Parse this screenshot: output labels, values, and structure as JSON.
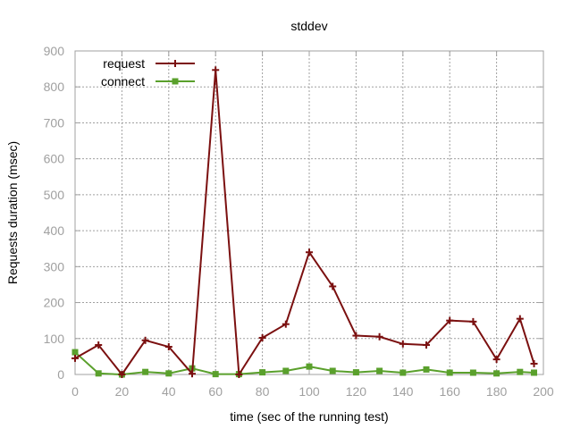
{
  "chart_data": {
    "type": "line",
    "title": "stddev",
    "xlabel": "time (sec of the running test)",
    "ylabel": "Requests duration (msec)",
    "xlim": [
      0,
      200
    ],
    "ylim": [
      0,
      900
    ],
    "xticks": [
      0,
      20,
      40,
      60,
      80,
      100,
      120,
      140,
      160,
      180,
      200
    ],
    "yticks": [
      0,
      100,
      200,
      300,
      400,
      500,
      600,
      700,
      800,
      900
    ],
    "grid": true,
    "legend_position": "top-left",
    "series": [
      {
        "name": "request",
        "color": "#7b1010",
        "marker": "plus",
        "x": [
          0,
          10,
          20,
          30,
          40,
          50,
          60,
          70,
          80,
          90,
          100,
          110,
          120,
          130,
          140,
          150,
          160,
          170,
          180,
          190,
          196
        ],
        "y": [
          45,
          82,
          0,
          95,
          77,
          2,
          847,
          0,
          102,
          140,
          340,
          245,
          108,
          105,
          85,
          82,
          150,
          147,
          42,
          155,
          30
        ]
      },
      {
        "name": "connect",
        "color": "#5aa02c",
        "marker": "filled-square",
        "x": [
          0,
          10,
          20,
          30,
          40,
          50,
          60,
          70,
          80,
          90,
          100,
          110,
          120,
          130,
          140,
          150,
          160,
          170,
          180,
          190,
          196
        ],
        "y": [
          62,
          3,
          0,
          7,
          3,
          17,
          1,
          1,
          6,
          10,
          22,
          10,
          6,
          10,
          5,
          14,
          5,
          5,
          3,
          7,
          5
        ]
      }
    ]
  }
}
